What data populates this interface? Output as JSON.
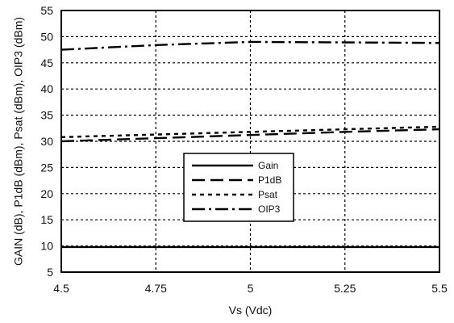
{
  "chart_data": {
    "type": "line",
    "xlabel": "Vs (Vdc)",
    "ylabel": "GAIN (dB), P1dB (dBm), Psat (dBm), OIP3 (dBm)",
    "xlim": [
      4.5,
      5.5
    ],
    "ylim": [
      5,
      55
    ],
    "xticks": [
      4.5,
      4.75,
      5,
      5.25,
      5.5
    ],
    "xtick_labels": [
      "4.5",
      "4.75",
      "5",
      "5.25",
      "5.5"
    ],
    "yticks": [
      5,
      10,
      15,
      20,
      25,
      30,
      35,
      40,
      45,
      50,
      55
    ],
    "ytick_labels": [
      "5",
      "10",
      "15",
      "20",
      "25",
      "30",
      "35",
      "40",
      "45",
      "50",
      "55"
    ],
    "grid": "dotted",
    "legend_position": "center",
    "series": [
      {
        "name": "Gain",
        "style": "solid",
        "color": "#000000",
        "x": [
          4.5,
          4.75,
          5,
          5.25,
          5.5
        ],
        "y": [
          9.8,
          9.8,
          9.8,
          9.8,
          9.8
        ]
      },
      {
        "name": "P1dB",
        "style": "dash",
        "color": "#000000",
        "x": [
          4.5,
          4.75,
          5,
          5.25,
          5.5
        ],
        "y": [
          30.0,
          30.6,
          31.2,
          31.8,
          32.3
        ]
      },
      {
        "name": "Psat",
        "style": "dot",
        "color": "#000000",
        "x": [
          4.5,
          4.75,
          5,
          5.25,
          5.5
        ],
        "y": [
          30.8,
          31.3,
          31.8,
          32.3,
          32.8
        ]
      },
      {
        "name": "OIP3",
        "style": "dashdot",
        "color": "#000000",
        "x": [
          4.5,
          4.75,
          5,
          5.25,
          5.5
        ],
        "y": [
          47.5,
          48.4,
          49.0,
          48.9,
          48.8
        ]
      }
    ]
  }
}
